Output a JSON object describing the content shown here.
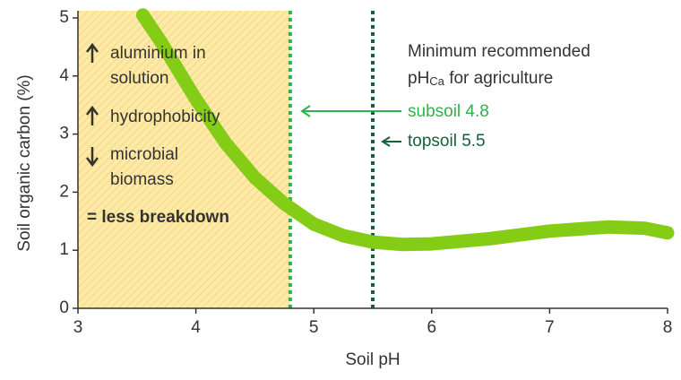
{
  "chart_data": {
    "type": "line",
    "xlabel": "Soil pH",
    "ylabel": "Soil organic carbon (%)",
    "x": [
      3.55,
      3.7,
      3.85,
      4,
      4.25,
      4.5,
      4.75,
      5,
      5.25,
      5.5,
      5.75,
      6,
      6.5,
      7,
      7.5,
      7.8,
      8
    ],
    "values": [
      5.05,
      4.6,
      4.1,
      3.6,
      2.85,
      2.25,
      1.8,
      1.45,
      1.25,
      1.14,
      1.1,
      1.11,
      1.2,
      1.33,
      1.4,
      1.38,
      1.3
    ],
    "color": "#84cc16",
    "xlim": [
      3,
      8
    ],
    "xticks": [
      3,
      4,
      5,
      6,
      7,
      8
    ],
    "ylim": [
      0,
      5
    ],
    "yticks": [
      0,
      1,
      2,
      3,
      4,
      5
    ],
    "shaded_region": [
      3,
      4.8
    ],
    "reference_lines": [
      {
        "value": 4.8,
        "color": "#2fb24a",
        "label": "subsoil 4.8"
      },
      {
        "value": 5.5,
        "color": "#16603a",
        "label": "topsoil 5.5"
      }
    ],
    "note_title": [
      "Minimum recommended",
      "pH",
      "Ca",
      " for agriculture"
    ],
    "effects": [
      "aluminium in",
      "solution",
      "hydrophobicity",
      "microbial",
      "biomass"
    ],
    "conclusion": "= less breakdown"
  }
}
